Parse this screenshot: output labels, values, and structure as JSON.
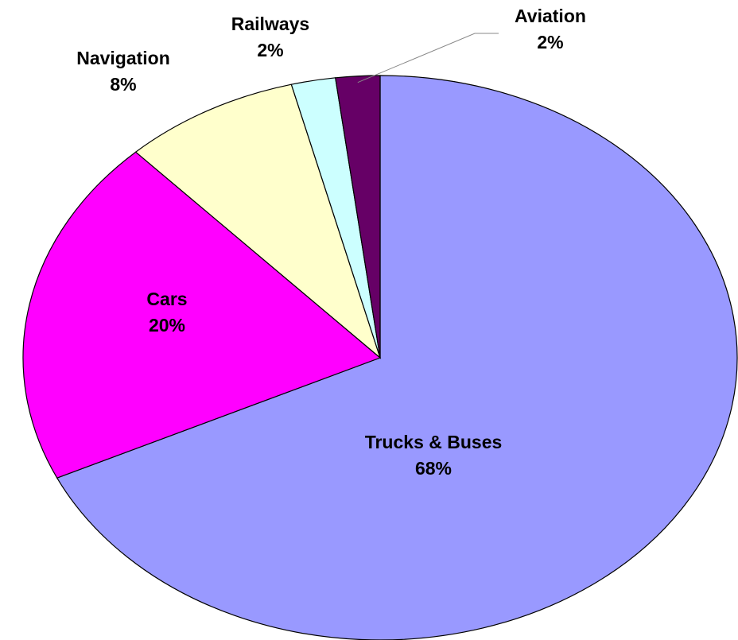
{
  "chart_data": {
    "type": "pie",
    "categories": [
      "Trucks & Buses",
      "Cars",
      "Navigation",
      "Railways",
      "Aviation"
    ],
    "values": [
      68,
      20,
      8,
      2,
      2
    ],
    "value_labels": [
      "68%",
      "20%",
      "8%",
      "2%",
      "2%"
    ],
    "colors": [
      "#9999ff",
      "#ff00ff",
      "#ffffcc",
      "#ccffff",
      "#660066"
    ]
  }
}
